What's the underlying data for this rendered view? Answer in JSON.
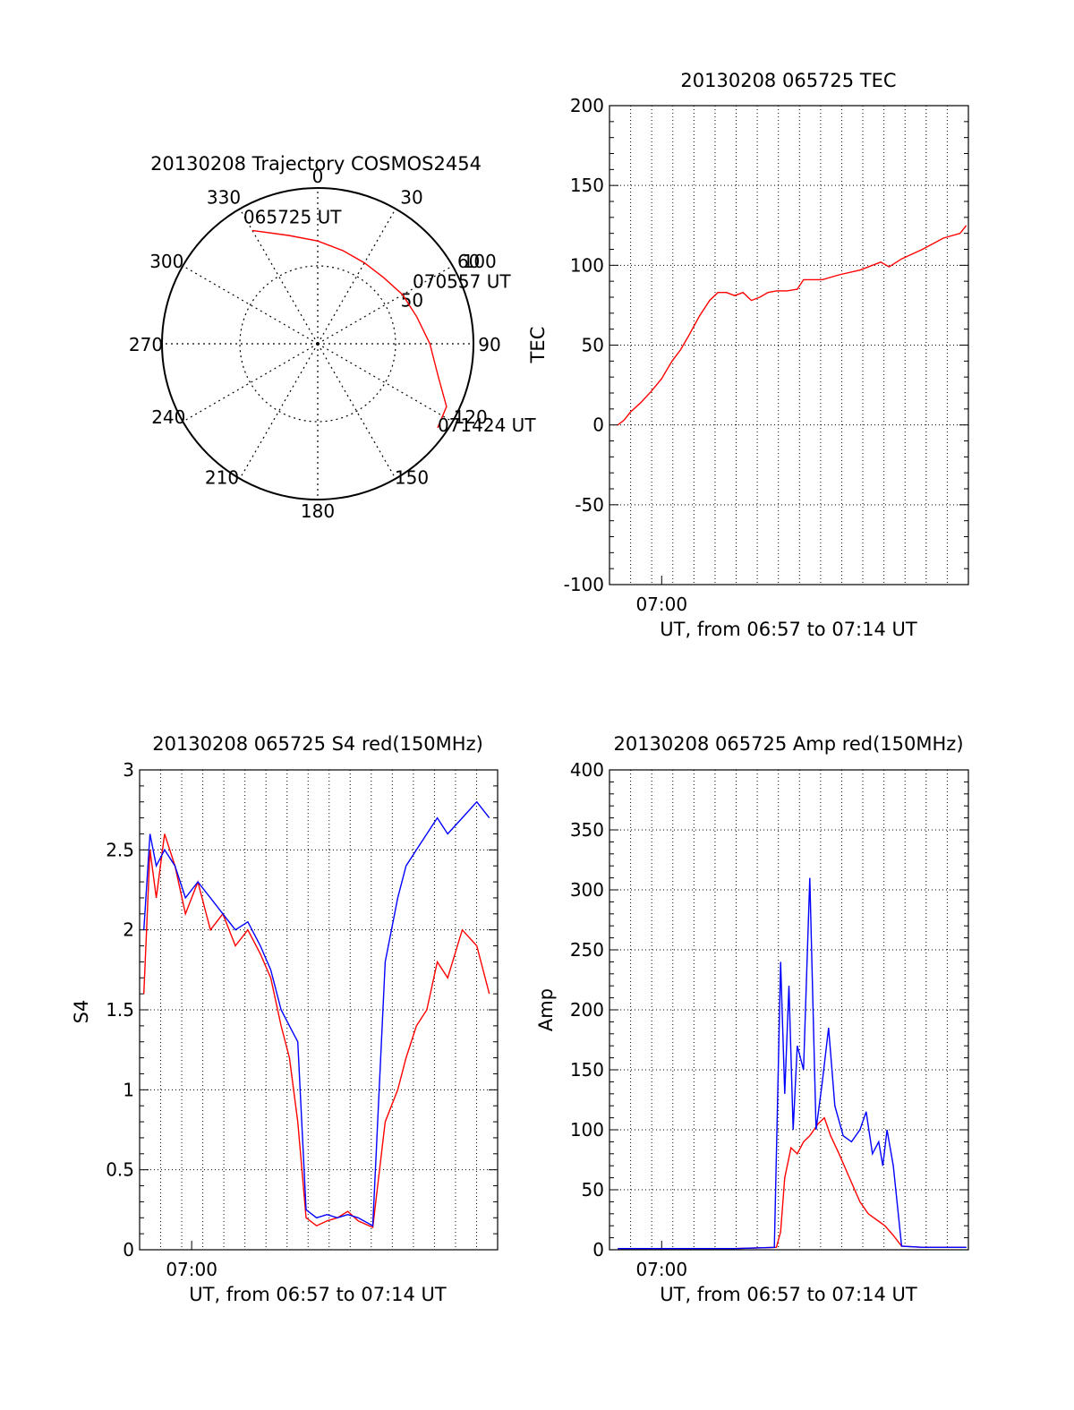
{
  "colors": {
    "red": "#ff0000",
    "blue": "#0000ff",
    "axis": "#000000",
    "grid": "#000000"
  },
  "chart_data": [
    {
      "id": "trajectory",
      "type": "polar",
      "title": "20130208 Trajectory COSMOS2454",
      "angle_labels": [
        "0",
        "30",
        "60",
        "90",
        "120",
        "150",
        "180",
        "210",
        "240",
        "270",
        "300",
        "330"
      ],
      "angles_deg": [
        0,
        30,
        60,
        90,
        120,
        150,
        180,
        210,
        240,
        270,
        300,
        330
      ],
      "radial_rings": [
        50,
        100
      ],
      "radial_labels": [
        "50",
        "100"
      ],
      "rmax": 100,
      "grid": true,
      "series": [
        {
          "color": "#ff0000",
          "points": [
            {
              "az": 330,
              "r": 84
            },
            {
              "az": 345,
              "r": 72
            },
            {
              "az": 0,
              "r": 66
            },
            {
              "az": 15,
              "r": 62
            },
            {
              "az": 30,
              "r": 60
            },
            {
              "az": 45,
              "r": 60
            },
            {
              "az": 60,
              "r": 63
            },
            {
              "az": 75,
              "r": 66
            },
            {
              "az": 90,
              "r": 72
            },
            {
              "az": 105,
              "r": 80
            },
            {
              "az": 116,
              "r": 92
            },
            {
              "az": 125,
              "r": 94
            }
          ]
        }
      ],
      "annotations": [
        {
          "text": "065725 UT",
          "az": 330,
          "r": 84
        },
        {
          "text": "070557 UT",
          "az": 62,
          "r": 69
        },
        {
          "text": "071424 UT",
          "az": 125,
          "r": 94
        }
      ]
    },
    {
      "id": "tec",
      "type": "line",
      "title": "20130208 065725 TEC",
      "xlabel": "UT, from 06:57 to 07:14 UT",
      "ylabel": "TEC",
      "xticks": [
        {
          "label": "07:00",
          "value": 2.5
        }
      ],
      "xlim": [
        0,
        17.2
      ],
      "ylim": [
        -100,
        200
      ],
      "yticks": [
        -100,
        -50,
        0,
        50,
        100,
        150,
        200
      ],
      "grid": true,
      "series": [
        {
          "color": "#ff0000",
          "x": [
            0.4,
            0.7,
            1.0,
            1.5,
            2.0,
            2.5,
            3.0,
            3.4,
            3.8,
            4.3,
            4.8,
            5.2,
            5.6,
            6.0,
            6.4,
            6.8,
            7.2,
            7.6,
            8.0,
            8.5,
            9.0,
            9.3,
            9.7,
            10.2,
            11.0,
            12.0,
            13.0,
            13.4,
            14.0,
            15.0,
            16.0,
            16.8,
            17.1
          ],
          "y": [
            0,
            3,
            8,
            14,
            21,
            29,
            40,
            47,
            56,
            68,
            78,
            83,
            83,
            81,
            83,
            78,
            80,
            83,
            84,
            84,
            85,
            91,
            91,
            91,
            94,
            97,
            102,
            99,
            104,
            110,
            117,
            120,
            125
          ]
        }
      ]
    },
    {
      "id": "s4",
      "type": "line",
      "title": "20130208 065725 S4 red(150MHz)",
      "xlabel": "UT, from 06:57 to 07:14 UT",
      "ylabel": "S4",
      "xticks": [
        {
          "label": "07:00",
          "value": 2.5
        }
      ],
      "xlim": [
        0,
        17.2
      ],
      "ylim": [
        0,
        3
      ],
      "yticks": [
        0,
        0.5,
        1,
        1.5,
        2,
        2.5,
        3
      ],
      "ytick_labels": [
        "0",
        "0.5",
        "1",
        "1.5",
        "2",
        "2.5",
        "3"
      ],
      "grid": true,
      "series": [
        {
          "color": "#ff0000",
          "x": [
            0.2,
            0.5,
            0.8,
            1.2,
            1.7,
            2.2,
            2.8,
            3.4,
            4.0,
            4.6,
            5.2,
            5.8,
            6.3,
            6.8,
            7.2,
            7.6,
            8.0,
            8.5,
            9.0,
            9.5,
            10.0,
            10.5,
            11.2,
            11.8,
            12.4,
            12.8,
            13.3,
            13.8,
            14.3,
            14.8,
            15.5,
            16.2,
            16.8
          ],
          "y": [
            1.6,
            2.5,
            2.2,
            2.6,
            2.4,
            2.1,
            2.3,
            2.0,
            2.1,
            1.9,
            2.0,
            1.85,
            1.7,
            1.4,
            1.2,
            0.8,
            0.2,
            0.15,
            0.18,
            0.2,
            0.24,
            0.18,
            0.14,
            0.8,
            1.0,
            1.2,
            1.4,
            1.5,
            1.8,
            1.7,
            2.0,
            1.9,
            1.6
          ]
        },
        {
          "color": "#0000ff",
          "x": [
            0.2,
            0.5,
            0.8,
            1.2,
            1.7,
            2.2,
            2.8,
            3.4,
            4.0,
            4.6,
            5.2,
            5.8,
            6.3,
            6.8,
            7.2,
            7.6,
            8.0,
            8.5,
            9.0,
            9.5,
            10.0,
            10.5,
            11.2,
            11.8,
            12.4,
            12.8,
            13.3,
            13.8,
            14.3,
            14.8,
            15.5,
            16.2,
            16.8
          ],
          "y": [
            2.0,
            2.6,
            2.4,
            2.5,
            2.4,
            2.2,
            2.3,
            2.2,
            2.1,
            2.0,
            2.05,
            1.9,
            1.75,
            1.5,
            1.4,
            1.3,
            0.25,
            0.2,
            0.22,
            0.2,
            0.22,
            0.2,
            0.15,
            1.8,
            2.2,
            2.4,
            2.5,
            2.6,
            2.7,
            2.6,
            2.7,
            2.8,
            2.7
          ]
        }
      ]
    },
    {
      "id": "amp",
      "type": "line",
      "title": "20130208 065725 Amp red(150MHz)",
      "xlabel": "UT, from 06:57 to 07:14 UT",
      "ylabel": "Amp",
      "xticks": [
        {
          "label": "07:00",
          "value": 2.5
        }
      ],
      "xlim": [
        0,
        17.2
      ],
      "ylim": [
        0,
        400
      ],
      "yticks": [
        0,
        50,
        100,
        150,
        200,
        250,
        300,
        350,
        400
      ],
      "grid": true,
      "series": [
        {
          "color": "#ff0000",
          "x": [
            0.4,
            3.0,
            6.0,
            8.0,
            8.2,
            8.4,
            8.7,
            9.0,
            9.3,
            9.6,
            10.0,
            10.3,
            10.6,
            11.0,
            11.5,
            12.0,
            12.4,
            12.8,
            13.2,
            13.6,
            14.0,
            15.0,
            17.1
          ],
          "y": [
            1,
            1,
            1,
            2,
            15,
            60,
            85,
            80,
            90,
            95,
            105,
            110,
            95,
            80,
            60,
            40,
            30,
            25,
            20,
            12,
            3,
            2,
            2
          ]
        },
        {
          "color": "#0000ff",
          "x": [
            0.4,
            3.0,
            6.0,
            7.9,
            8.2,
            8.4,
            8.6,
            8.8,
            9.0,
            9.3,
            9.6,
            9.9,
            10.2,
            10.5,
            10.8,
            11.2,
            11.6,
            12.0,
            12.3,
            12.6,
            12.9,
            13.1,
            13.3,
            13.6,
            14.0,
            15.0,
            17.1
          ],
          "y": [
            1,
            1,
            1,
            2,
            240,
            130,
            220,
            100,
            170,
            150,
            310,
            100,
            140,
            185,
            120,
            95,
            90,
            100,
            115,
            80,
            90,
            70,
            100,
            70,
            3,
            2,
            2
          ]
        }
      ]
    }
  ]
}
